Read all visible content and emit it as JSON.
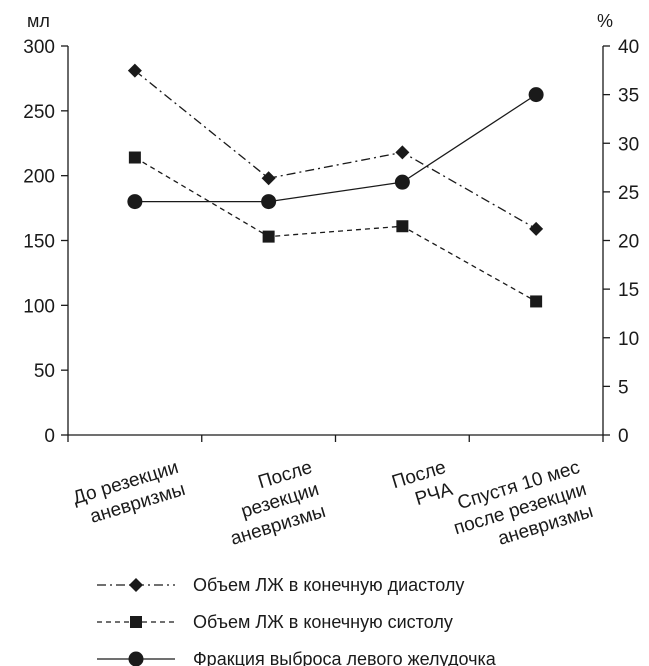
{
  "chart_data": {
    "type": "line",
    "categories": [
      [
        "До резекции",
        "аневризмы"
      ],
      [
        "После",
        "резекции",
        "аневризмы"
      ],
      [
        "После",
        "РЧА"
      ],
      [
        "Спустя 10 мес",
        "после резекции",
        "аневризмы"
      ]
    ],
    "y_left": {
      "unit": "мл",
      "range": [
        0,
        300
      ],
      "ticks": [
        "0",
        "50",
        "100",
        "150",
        "200",
        "250",
        "300"
      ]
    },
    "y_right": {
      "unit": "%",
      "range": [
        0,
        40
      ],
      "ticks": [
        "0",
        "5",
        "10",
        "15",
        "20",
        "25",
        "30",
        "35",
        "40"
      ]
    },
    "grid": false,
    "legend_placement": "bottom",
    "series": [
      {
        "name": "Объем ЛЖ в конечную диастолу",
        "axis": "left",
        "marker": "diamond",
        "line": "dash-dot",
        "values": [
          281,
          198,
          218,
          159
        ]
      },
      {
        "name": "Объем ЛЖ в конечную систолу",
        "axis": "left",
        "marker": "square",
        "line": "dashed",
        "values": [
          214,
          153,
          161,
          103
        ]
      },
      {
        "name": "Фракция выброса левого желудочка",
        "axis": "right",
        "marker": "circle",
        "line": "solid",
        "values": [
          24,
          24,
          26,
          35
        ]
      }
    ]
  }
}
